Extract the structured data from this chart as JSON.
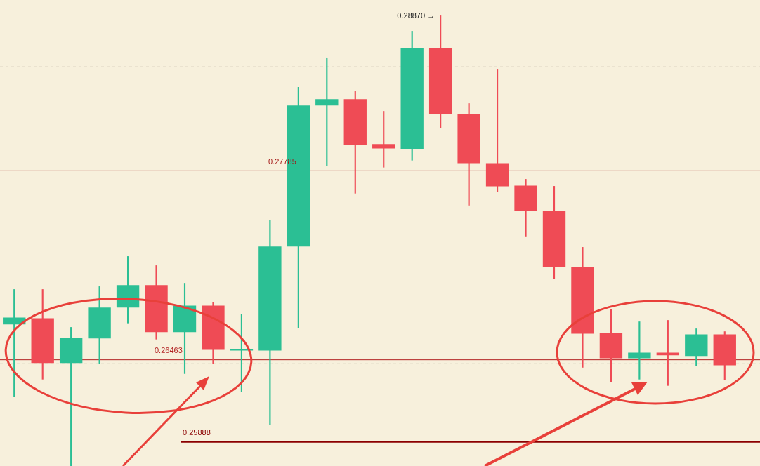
{
  "chart_data": {
    "type": "candlestick",
    "categories": [
      null,
      null,
      null,
      null,
      null,
      null,
      null,
      null,
      null,
      null,
      null,
      null,
      null,
      null,
      null,
      null,
      null,
      null,
      null,
      null,
      null,
      null,
      null,
      null,
      null,
      null
    ],
    "ohlc": [
      [
        0.2671,
        0.26955,
        0.26204,
        0.26759
      ],
      [
        0.26754,
        0.26955,
        0.26327,
        0.2644
      ],
      [
        0.2644,
        0.2669,
        0.2572,
        0.26616
      ],
      [
        0.26612,
        0.26975,
        0.26435,
        0.26828
      ],
      [
        0.26828,
        0.27186,
        0.2672,
        0.26985
      ],
      [
        0.26985,
        0.27122,
        0.26607,
        0.26656
      ],
      [
        0.26656,
        0.26999,
        0.26366,
        0.26842
      ],
      [
        0.26842,
        0.26867,
        0.26435,
        0.26533
      ],
      [
        0.26528,
        0.26783,
        0.26238,
        0.26538
      ],
      [
        0.26528,
        0.27441,
        0.26008,
        0.27255
      ],
      [
        0.27255,
        0.28369,
        0.26685,
        0.28242
      ],
      [
        0.28242,
        0.28576,
        0.27819,
        0.28286
      ],
      [
        0.28286,
        0.28345,
        0.27628,
        0.27967
      ],
      [
        0.27972,
        0.28202,
        0.2781,
        0.27942
      ],
      [
        0.27937,
        0.28762,
        0.27859,
        0.28644
      ],
      [
        0.28644,
        0.2887,
        0.28085,
        0.28183
      ],
      [
        0.28183,
        0.28256,
        0.27544,
        0.27839
      ],
      [
        0.27839,
        0.28492,
        0.27638,
        0.27677
      ],
      [
        0.27682,
        0.27726,
        0.27328,
        0.27505
      ],
      [
        0.27505,
        0.27677,
        0.27029,
        0.27112
      ],
      [
        0.27112,
        0.2725,
        0.2641,
        0.26646
      ],
      [
        0.26651,
        0.26818,
        0.26307,
        0.26474
      ],
      [
        0.26474,
        0.26729,
        0.26327,
        0.26513
      ],
      [
        0.26513,
        0.26739,
        0.26283,
        0.26494
      ],
      [
        0.26489,
        0.2668,
        0.2642,
        0.26641
      ],
      [
        0.26641,
        0.2666,
        0.26322,
        0.26425
      ]
    ],
    "colors": [
      "#2bbf94",
      "#ef4b55",
      "#2bbf94",
      "#2bbf94",
      "#2bbf94",
      "#ef4b55",
      "#2bbf94",
      "#ef4b55",
      "#2bbf94",
      "#2bbf94",
      "#2bbf94",
      "#2bbf94",
      "#ef4b55",
      "#ef4b55",
      "#2bbf94",
      "#ef4b55",
      "#ef4b55",
      "#ef4b55",
      "#ef4b55",
      "#ef4b55",
      "#ef4b55",
      "#ef4b55",
      "#2bbf94",
      "#ef4b55",
      "#2bbf94",
      "#ef4b55"
    ],
    "ylim": [
      0.2572,
      0.2898
    ],
    "tick_labels": false,
    "ref_lines": [
      {
        "axis": "y",
        "value": 0.27785,
        "label": "0.27785",
        "color": "#a31515"
      },
      {
        "axis": "y",
        "value": 0.26463,
        "label": "0.26463",
        "color": "#b22222"
      },
      {
        "axis": "y",
        "value": 0.25888,
        "label": "0.25888",
        "color": "#8b0000"
      },
      {
        "axis": "y",
        "value": 0.28512,
        "color": "#b0a898",
        "line_style": "dashed"
      },
      {
        "axis": "y",
        "value": 0.26435,
        "color": "#b0a898",
        "line_style": "dashed"
      }
    ],
    "annotations": [
      "0.28870 →"
    ]
  }
}
